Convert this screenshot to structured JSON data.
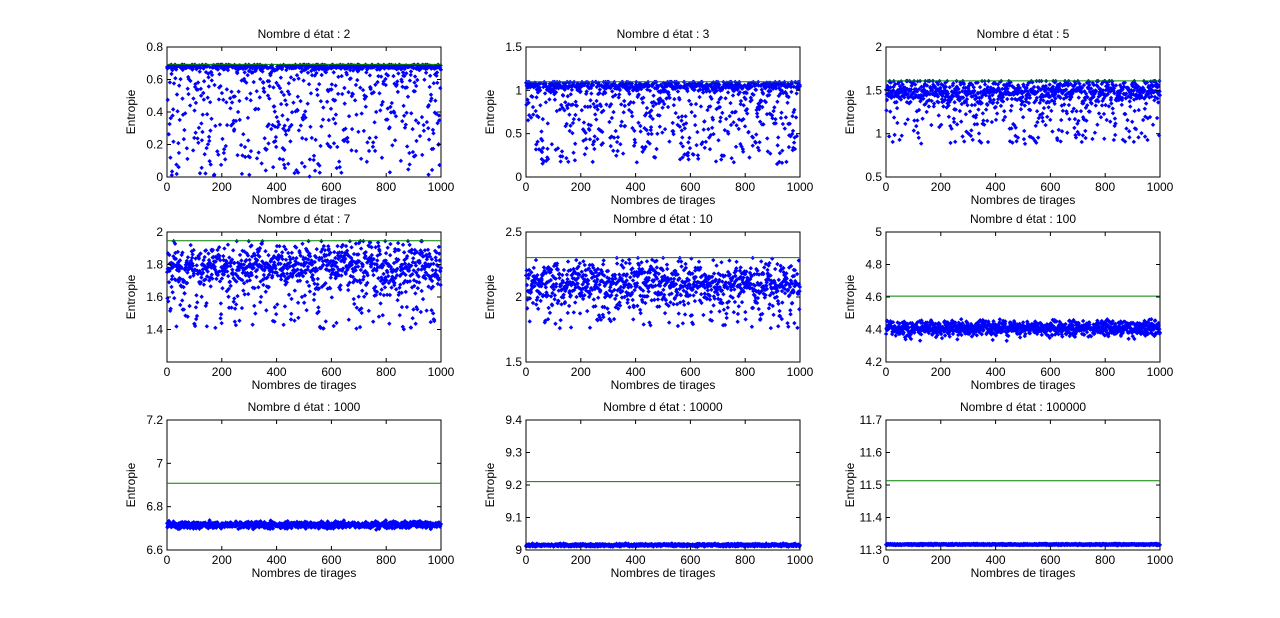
{
  "chart_data": [
    {
      "type": "scatter",
      "title": "Nombre d état : 2",
      "xlabel": "Nombres de tirages",
      "ylabel": "Entropie",
      "xlim": [
        0,
        1000
      ],
      "ylim": [
        0,
        0.8
      ],
      "xticks": [
        0,
        200,
        400,
        600,
        800,
        1000
      ],
      "xtick_labels": [
        "0",
        "200",
        "400",
        "600",
        "800",
        "1000"
      ],
      "yticks": [
        0,
        0.2,
        0.4,
        0.6,
        0.8
      ],
      "ytick_labels": [
        "0",
        "0.2",
        "0.4",
        "0.6",
        "0.8"
      ],
      "reference_line": 0.6931,
      "cluster_center": 0.68,
      "cluster_spread": 0.008,
      "tail_min": 0.0,
      "tail_fraction": 0.55,
      "n_points": 1000,
      "series_color": "#0000ff",
      "reference_color": "#008000"
    },
    {
      "type": "scatter",
      "title": "Nombre d état : 3",
      "xlabel": "Nombres de tirages",
      "ylabel": "Entropie",
      "xlim": [
        0,
        1000
      ],
      "ylim": [
        0,
        1.5
      ],
      "xticks": [
        0,
        200,
        400,
        600,
        800,
        1000
      ],
      "xtick_labels": [
        "0",
        "200",
        "400",
        "600",
        "800",
        "1000"
      ],
      "yticks": [
        0,
        0.5,
        1,
        1.5
      ],
      "ytick_labels": [
        "0",
        "0.5",
        "1",
        "1.5"
      ],
      "reference_line": 1.0986,
      "cluster_center": 1.06,
      "cluster_spread": 0.03,
      "tail_min": 0.15,
      "tail_fraction": 0.55,
      "n_points": 1000,
      "series_color": "#0000ff",
      "reference_color": "#008000"
    },
    {
      "type": "scatter",
      "title": "Nombre d état : 5",
      "xlabel": "Nombres de tirages",
      "ylabel": "Entropie",
      "xlim": [
        0,
        1000
      ],
      "ylim": [
        0.5,
        2
      ],
      "xticks": [
        0,
        200,
        400,
        600,
        800,
        1000
      ],
      "xtick_labels": [
        "0",
        "200",
        "400",
        "600",
        "800",
        "1000"
      ],
      "yticks": [
        0.5,
        1,
        1.5,
        2
      ],
      "ytick_labels": [
        "0.5",
        "1",
        "1.5",
        "2"
      ],
      "reference_line": 1.6094,
      "cluster_center": 1.5,
      "cluster_spread": 0.07,
      "tail_min": 0.88,
      "tail_fraction": 0.4,
      "n_points": 1000,
      "series_color": "#0000ff",
      "reference_color": "#008000"
    },
    {
      "type": "scatter",
      "title": "Nombre d état : 7",
      "xlabel": "Nombres de tirages",
      "ylabel": "Entropie",
      "xlim": [
        0,
        1000
      ],
      "ylim": [
        1.2,
        2
      ],
      "xticks": [
        0,
        200,
        400,
        600,
        800,
        1000
      ],
      "xtick_labels": [
        "0",
        "200",
        "400",
        "600",
        "800",
        "1000"
      ],
      "yticks": [
        1.4,
        1.6,
        1.8,
        2
      ],
      "ytick_labels": [
        "1.4",
        "1.6",
        "1.8",
        "2"
      ],
      "reference_line": 1.9459,
      "cluster_center": 1.8,
      "cluster_spread": 0.07,
      "tail_min": 1.4,
      "tail_fraction": 0.35,
      "n_points": 1000,
      "series_color": "#0000ff",
      "reference_color": "#008000"
    },
    {
      "type": "scatter",
      "title": "Nombre d état : 10",
      "xlabel": "Nombres de tirages",
      "ylabel": "Entropie",
      "xlim": [
        0,
        1000
      ],
      "ylim": [
        1.5,
        2.5
      ],
      "xticks": [
        0,
        200,
        400,
        600,
        800,
        1000
      ],
      "xtick_labels": [
        "0",
        "200",
        "400",
        "600",
        "800",
        "1000"
      ],
      "yticks": [
        1.5,
        2,
        2.5
      ],
      "ytick_labels": [
        "1.5",
        "2",
        "2.5"
      ],
      "reference_line": 2.3026,
      "cluster_center": 2.12,
      "cluster_spread": 0.08,
      "tail_min": 1.76,
      "tail_fraction": 0.3,
      "n_points": 1000,
      "series_color": "#0000ff",
      "reference_color": "#008000"
    },
    {
      "type": "scatter",
      "title": "Nombre d état : 100",
      "xlabel": "Nombres de tirages",
      "ylabel": "Entropie",
      "xlim": [
        0,
        1000
      ],
      "ylim": [
        4.2,
        5
      ],
      "xticks": [
        0,
        200,
        400,
        600,
        800,
        1000
      ],
      "xtick_labels": [
        "0",
        "200",
        "400",
        "600",
        "800",
        "1000"
      ],
      "yticks": [
        4.2,
        4.4,
        4.6,
        4.8,
        5
      ],
      "ytick_labels": [
        "4.2",
        "4.4",
        "4.6",
        "4.8",
        "5"
      ],
      "reference_line": 4.6052,
      "cluster_center": 4.41,
      "cluster_spread": 0.022,
      "tail_min": 4.33,
      "tail_fraction": 0.1,
      "n_points": 1000,
      "series_color": "#0000ff",
      "reference_color": "#008000"
    },
    {
      "type": "scatter",
      "title": "Nombre d état : 1000",
      "xlabel": "Nombres de tirages",
      "ylabel": "Entropie",
      "xlim": [
        0,
        1000
      ],
      "ylim": [
        6.6,
        7.2
      ],
      "xticks": [
        0,
        200,
        400,
        600,
        800,
        1000
      ],
      "xtick_labels": [
        "0",
        "200",
        "400",
        "600",
        "800",
        "1000"
      ],
      "yticks": [
        6.6,
        6.8,
        7,
        7.2
      ],
      "ytick_labels": [
        "6.6",
        "6.8",
        "7",
        "7.2"
      ],
      "reference_line": 6.9078,
      "cluster_center": 6.715,
      "cluster_spread": 0.008,
      "tail_min": 6.69,
      "tail_fraction": 0.0,
      "n_points": 1000,
      "series_color": "#0000ff",
      "reference_color": "#008000"
    },
    {
      "type": "scatter",
      "title": "Nombre d état : 10000",
      "xlabel": "Nombres de tirages",
      "ylabel": "Entropie",
      "xlim": [
        0,
        1000
      ],
      "ylim": [
        9,
        9.4
      ],
      "xticks": [
        0,
        200,
        400,
        600,
        800,
        1000
      ],
      "xtick_labels": [
        "0",
        "200",
        "400",
        "600",
        "800",
        "1000"
      ],
      "yticks": [
        9,
        9.1,
        9.2,
        9.3,
        9.4
      ],
      "ytick_labels": [
        "9",
        "9.1",
        "9.2",
        "9.3",
        "9.4"
      ],
      "reference_line": 9.2103,
      "cluster_center": 9.015,
      "cluster_spread": 0.002,
      "tail_min": 9.005,
      "tail_fraction": 0.0,
      "n_points": 1000,
      "series_color": "#0000ff",
      "reference_color": "#008000"
    },
    {
      "type": "scatter",
      "title": "Nombre d état : 100000",
      "xlabel": "Nombres de tirages",
      "ylabel": "Entropie",
      "xlim": [
        0,
        1000
      ],
      "ylim": [
        11.3,
        11.7
      ],
      "xticks": [
        0,
        200,
        400,
        600,
        800,
        1000
      ],
      "xtick_labels": [
        "0",
        "200",
        "400",
        "600",
        "800",
        "1000"
      ],
      "yticks": [
        11.3,
        11.4,
        11.5,
        11.6,
        11.7
      ],
      "ytick_labels": [
        "11.3",
        "11.4",
        "11.5",
        "11.6",
        "11.7"
      ],
      "reference_line": 11.5129,
      "cluster_center": 11.317,
      "cluster_spread": 0.001,
      "tail_min": 11.31,
      "tail_fraction": 0.0,
      "n_points": 1000,
      "series_color": "#0000ff",
      "reference_color": "#008000"
    }
  ]
}
